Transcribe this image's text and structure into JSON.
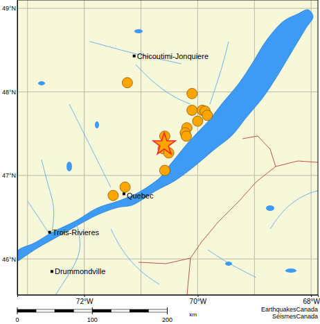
{
  "chart_data": {
    "type": "map",
    "xlim": [
      -73.18,
      -67.88
    ],
    "ylim": [
      45.57,
      49.1
    ],
    "xticks": [
      {
        "value": -72,
        "label": "72°W"
      },
      {
        "value": -70,
        "label": "70°W"
      },
      {
        "value": -68,
        "label": "68°W"
      }
    ],
    "yticks": [
      {
        "value": 46,
        "label": "46°N"
      },
      {
        "value": 47,
        "label": "47°N"
      },
      {
        "value": 48,
        "label": "48°N"
      },
      {
        "value": 49,
        "label": "49°N"
      }
    ],
    "meridians": [
      -73,
      -72,
      -71,
      -70,
      -69,
      -68
    ],
    "parallels": [
      46,
      47,
      48,
      49
    ],
    "cities": [
      {
        "name": "Chicoutimi-Jonquiere",
        "lon": -71.12,
        "lat": 48.43
      },
      {
        "name": "Quebec",
        "lon": -71.3,
        "lat": 46.78
      },
      {
        "name": "Trois-Rivieres",
        "lon": -72.61,
        "lat": 46.32
      },
      {
        "name": "Drummondville",
        "lon": -72.57,
        "lat": 45.85
      }
    ],
    "earthquakes": {
      "color": "#ffa500",
      "marker": "circle",
      "lon": [
        -71.24,
        -70.1,
        -70.1,
        -69.92,
        -69.87,
        -69.83,
        -70.0,
        -70.19,
        -70.22,
        -70.2,
        -70.58,
        -70.61,
        -70.51,
        -70.58,
        -71.28,
        -71.49
      ],
      "lat": [
        48.11,
        47.98,
        47.78,
        47.78,
        47.77,
        47.72,
        47.65,
        47.57,
        47.51,
        47.47,
        47.47,
        47.32,
        47.27,
        47.06,
        46.86,
        46.76
      ]
    },
    "main_shock": {
      "lon": -70.59,
      "lat": 47.37,
      "color": "#ff2020",
      "marker": "star"
    },
    "scale_bar": {
      "unit": "km",
      "ticks": [
        0,
        100,
        200
      ]
    },
    "credits": [
      "EarthquakesCanada",
      "SéismesCanada"
    ]
  }
}
